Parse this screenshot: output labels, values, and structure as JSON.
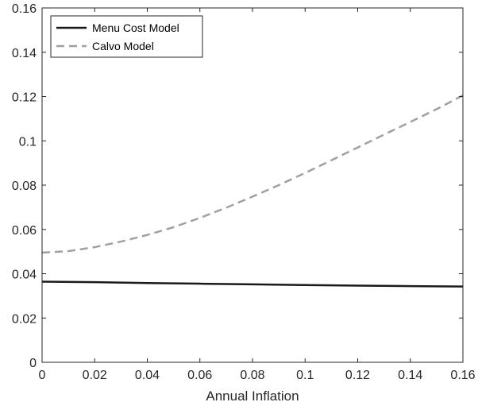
{
  "chart_data": {
    "type": "line",
    "title": "",
    "xlabel": "Annual Inflation",
    "ylabel": "",
    "xlim": [
      0,
      0.16
    ],
    "ylim": [
      0,
      0.16
    ],
    "x_ticks": [
      0,
      0.02,
      0.04,
      0.06,
      0.08,
      0.1,
      0.12,
      0.14,
      0.16
    ],
    "x_tick_labels": [
      "0",
      "0.02",
      "0.04",
      "0.06",
      "0.08",
      "0.1",
      "0.12",
      "0.14",
      "0.16"
    ],
    "y_ticks": [
      0,
      0.02,
      0.04,
      0.06,
      0.08,
      0.1,
      0.12,
      0.14,
      0.16
    ],
    "y_tick_labels": [
      "0",
      "0.02",
      "0.04",
      "0.06",
      "0.08",
      "0.1",
      "0.12",
      "0.14",
      "0.16"
    ],
    "grid": false,
    "legend_position": "top-left",
    "series": [
      {
        "name": "Menu Cost Model",
        "style": "solid",
        "color": "#1a1a1a",
        "x": [
          0,
          0.02,
          0.04,
          0.06,
          0.08,
          0.1,
          0.12,
          0.14,
          0.16
        ],
        "y": [
          0.0364,
          0.0362,
          0.0358,
          0.0355,
          0.0352,
          0.0349,
          0.0346,
          0.0344,
          0.0342
        ]
      },
      {
        "name": "Calvo Model",
        "style": "dashed",
        "color": "#a0a0a0",
        "x": [
          0,
          0.01,
          0.02,
          0.03,
          0.04,
          0.05,
          0.06,
          0.07,
          0.08,
          0.09,
          0.1,
          0.11,
          0.12,
          0.13,
          0.14,
          0.15,
          0.16
        ],
        "y": [
          0.0495,
          0.0502,
          0.052,
          0.0545,
          0.0575,
          0.061,
          0.0652,
          0.0698,
          0.0748,
          0.08,
          0.0855,
          0.0912,
          0.097,
          0.1028,
          0.1085,
          0.1143,
          0.1205
        ]
      }
    ]
  }
}
